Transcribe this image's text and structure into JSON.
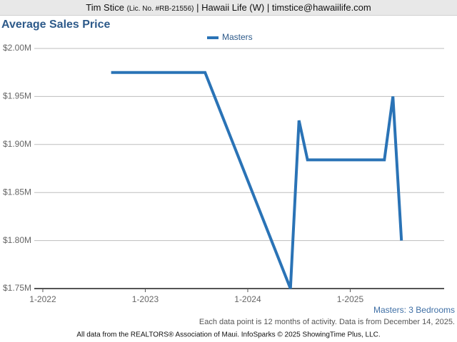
{
  "header": {
    "name": "Tim Stice",
    "license": "(Lic. No. #RB-21556)",
    "rest": "| Hawaii Life (W) | timstice@hawaiilife.com"
  },
  "chart_data": {
    "type": "line",
    "title": "Average Sales Price",
    "x": [
      "9-2022",
      "10-2022",
      "11-2022",
      "12-2022",
      "1-2023",
      "2-2023",
      "3-2023",
      "4-2023",
      "5-2023",
      "6-2023",
      "7-2023",
      "8-2023",
      "9-2023",
      "10-2023",
      "11-2023",
      "12-2023",
      "1-2024",
      "2-2024",
      "3-2024",
      "4-2024",
      "5-2024",
      "6-2024",
      "7-2024",
      "8-2024",
      "9-2024",
      "10-2024",
      "11-2024",
      "12-2024",
      "1-2025",
      "2-2025",
      "3-2025",
      "4-2025",
      "5-2025",
      "6-2025",
      "7-2025"
    ],
    "series": [
      {
        "name": "Masters",
        "color": "#2a73b6",
        "values": [
          1975000,
          1975000,
          1975000,
          1975000,
          1975000,
          1975000,
          1975000,
          1975000,
          1975000,
          1975000,
          1975000,
          1975000,
          1952500,
          1930000,
          1907500,
          1885000,
          1862500,
          1840000,
          1817500,
          1795000,
          1772500,
          1750000,
          1925000,
          1884000,
          1884000,
          1884000,
          1884000,
          1884000,
          1884000,
          1884000,
          1884000,
          1884000,
          1884000,
          1950000,
          1800000
        ]
      }
    ],
    "xlim": [
      "12-2021",
      "12-2025"
    ],
    "xticks": [
      "1-2022",
      "1-2023",
      "1-2024",
      "1-2025"
    ],
    "ylim": [
      1750000,
      2000000
    ],
    "yticks": [
      {
        "value": 1750000,
        "label": "$1.75M"
      },
      {
        "value": 1800000,
        "label": "$1.80M"
      },
      {
        "value": 1850000,
        "label": "$1.85M"
      },
      {
        "value": 1900000,
        "label": "$1.90M"
      },
      {
        "value": 1950000,
        "label": "$1.95M"
      },
      {
        "value": 2000000,
        "label": "$2.00M"
      }
    ],
    "grid": true,
    "legend": "top",
    "subtitle": "Masters: 3 Bedrooms",
    "note": "Each data point is 12 months of activity. Data is from December 14, 2025.",
    "footer": "All data from the REALTORS® Association of Maui. InfoSparks © 2025 ShowingTime Plus, LLC."
  }
}
